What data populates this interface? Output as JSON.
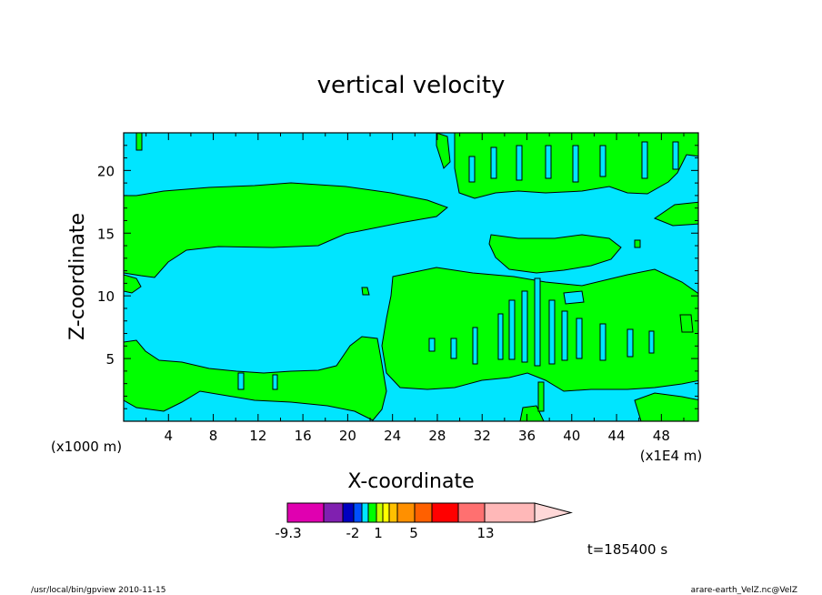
{
  "chart_data": {
    "type": "contour",
    "title": "vertical velocity",
    "xlabel": "X-coordinate",
    "ylabel": "Z-coordinate",
    "x_units_left": "(x1000 m)",
    "x_units_right": "(x1E4 m)",
    "x_ticks": [
      "4",
      "8",
      "12",
      "16",
      "20",
      "24",
      "28",
      "32",
      "36",
      "40",
      "44",
      "48"
    ],
    "x_tick_values": [
      4,
      8,
      12,
      16,
      20,
      24,
      28,
      32,
      36,
      40,
      44,
      48
    ],
    "xlim": [
      0,
      51.3
    ],
    "y_ticks": [
      "5",
      "10",
      "15",
      "20"
    ],
    "y_tick_values": [
      5,
      10,
      15,
      20
    ],
    "ylim": [
      0,
      23
    ],
    "background_level_color": "#00e5ff",
    "positive_level_color": "#00ff00",
    "colorbar": {
      "colors": [
        "#e000b0",
        "#8020b0",
        "#0000c0",
        "#0050ff",
        "#00e5ff",
        "#00ff00",
        "#c8ff00",
        "#ffff00",
        "#ffc000",
        "#ff9000",
        "#ff6000",
        "#ff0000",
        "#ff7070",
        "#ffb8b8",
        "#ffd8d8"
      ],
      "labels": [
        "-9.3",
        "-2",
        "1",
        "5",
        "13"
      ]
    },
    "time_label": "t=185400 s"
  },
  "footer": {
    "left": "/usr/local/bin/gpview   2010-11-15",
    "right": "arare-earth_VelZ.nc@VelZ"
  }
}
